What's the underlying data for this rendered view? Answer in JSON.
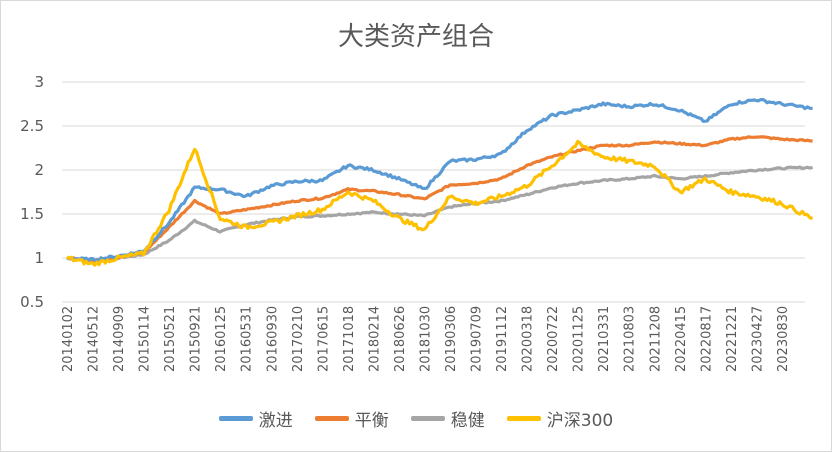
{
  "chart_data": {
    "type": "line",
    "title": "大类资产组合",
    "xlabel": "",
    "ylabel": "",
    "ylim": [
      0.5,
      3
    ],
    "yticks": [
      "0.5",
      "1",
      "1.5",
      "2",
      "2.5",
      "3"
    ],
    "xtick_labels": [
      "20140102",
      "20140512",
      "20140909",
      "20150114",
      "20150521",
      "20150921",
      "20160125",
      "20160531",
      "20160930",
      "20170210",
      "20170615",
      "20171018",
      "20180214",
      "20180626",
      "20181030",
      "20190306",
      "20190709",
      "20191112",
      "20200318",
      "20200722",
      "20201125",
      "20210331",
      "20210803",
      "20211208",
      "20220415",
      "20220817",
      "20221221",
      "20230427",
      "20230830"
    ],
    "grid": "horizontal",
    "legend_position": "bottom",
    "x": [
      0,
      1,
      2,
      3,
      4,
      5,
      6,
      7,
      8,
      9,
      10,
      11,
      12,
      13,
      14,
      15,
      16,
      17,
      18,
      19,
      20,
      21,
      22,
      23,
      24,
      25,
      26,
      27,
      28,
      29.2
    ],
    "series": [
      {
        "name": "激进",
        "color": "#5B9BD5",
        "values": [
          1.0,
          0.98,
          1.02,
          1.08,
          1.4,
          1.8,
          1.78,
          1.7,
          1.82,
          1.87,
          1.88,
          2.05,
          2.0,
          1.9,
          1.78,
          2.1,
          2.12,
          2.18,
          2.45,
          2.62,
          2.68,
          2.75,
          2.72,
          2.75,
          2.68,
          2.55,
          2.75,
          2.8,
          2.75,
          2.7
        ]
      },
      {
        "name": "平衡",
        "color": "#ED7D31",
        "values": [
          1.0,
          0.97,
          1.01,
          1.06,
          1.35,
          1.65,
          1.5,
          1.55,
          1.6,
          1.65,
          1.68,
          1.78,
          1.76,
          1.72,
          1.67,
          1.83,
          1.85,
          1.9,
          2.05,
          2.15,
          2.22,
          2.28,
          2.28,
          2.32,
          2.3,
          2.28,
          2.35,
          2.38,
          2.35,
          2.33
        ]
      },
      {
        "name": "稳健",
        "color": "#A5A5A5",
        "values": [
          1.0,
          0.98,
          1.0,
          1.04,
          1.2,
          1.42,
          1.3,
          1.38,
          1.43,
          1.47,
          1.48,
          1.5,
          1.52,
          1.5,
          1.48,
          1.58,
          1.62,
          1.65,
          1.72,
          1.8,
          1.85,
          1.88,
          1.9,
          1.93,
          1.9,
          1.93,
          1.97,
          2.0,
          2.02,
          2.03
        ]
      },
      {
        "name": "沪深300",
        "color": "#FFC000",
        "values": [
          1.0,
          0.93,
          1.0,
          1.05,
          1.55,
          2.25,
          1.45,
          1.35,
          1.4,
          1.48,
          1.55,
          1.75,
          1.65,
          1.45,
          1.32,
          1.7,
          1.62,
          1.7,
          1.82,
          2.05,
          2.3,
          2.15,
          2.1,
          2.05,
          1.75,
          1.9,
          1.75,
          1.7,
          1.62,
          1.45
        ]
      }
    ]
  }
}
